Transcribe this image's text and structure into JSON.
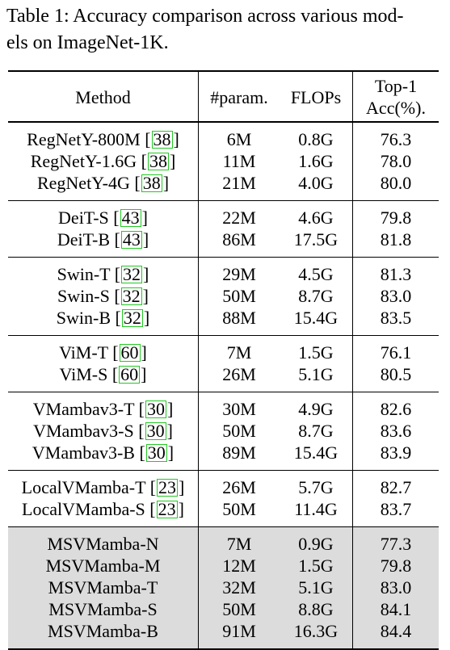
{
  "caption": {
    "line1": "Table 1: Accuracy comparison across various mod-",
    "line2": "els on ImageNet-1K."
  },
  "header": {
    "method": "Method",
    "params": "#param.",
    "flops": "FLOPs",
    "top1_line1": "Top-1",
    "top1_line2": "Acc(%)."
  },
  "groups": [
    {
      "rows": [
        {
          "method": "RegNetY-800M",
          "ref": "38",
          "params": "6M",
          "flops": "0.8G",
          "acc": "76.3"
        },
        {
          "method": "RegNetY-1.6G",
          "ref": "38",
          "params": "11M",
          "flops": "1.6G",
          "acc": "78.0"
        },
        {
          "method": "RegNetY-4G",
          "ref": "38",
          "params": "21M",
          "flops": "4.0G",
          "acc": "80.0"
        }
      ]
    },
    {
      "rows": [
        {
          "method": "DeiT-S",
          "ref": "43",
          "params": "22M",
          "flops": "4.6G",
          "acc": "79.8"
        },
        {
          "method": "DeiT-B",
          "ref": "43",
          "params": "86M",
          "flops": "17.5G",
          "acc": "81.8"
        }
      ]
    },
    {
      "rows": [
        {
          "method": "Swin-T",
          "ref": "32",
          "params": "29M",
          "flops": "4.5G",
          "acc": "81.3"
        },
        {
          "method": "Swin-S",
          "ref": "32",
          "params": "50M",
          "flops": "8.7G",
          "acc": "83.0"
        },
        {
          "method": "Swin-B",
          "ref": "32",
          "params": "88M",
          "flops": "15.4G",
          "acc": "83.5"
        }
      ]
    },
    {
      "rows": [
        {
          "method": "ViM-T",
          "ref": "60",
          "params": "7M",
          "flops": "1.5G",
          "acc": "76.1"
        },
        {
          "method": "ViM-S",
          "ref": "60",
          "params": "26M",
          "flops": "5.1G",
          "acc": "80.5"
        }
      ]
    },
    {
      "rows": [
        {
          "method": "VMambav3-T",
          "ref": "30",
          "params": "30M",
          "flops": "4.9G",
          "acc": "82.6"
        },
        {
          "method": "VMambav3-S",
          "ref": "30",
          "params": "50M",
          "flops": "8.7G",
          "acc": "83.6"
        },
        {
          "method": "VMambav3-B",
          "ref": "30",
          "params": "89M",
          "flops": "15.4G",
          "acc": "83.9"
        }
      ]
    },
    {
      "rows": [
        {
          "method": "LocalVMamba-T",
          "ref": "23",
          "params": "26M",
          "flops": "5.7G",
          "acc": "82.7"
        },
        {
          "method": "LocalVMamba-S",
          "ref": "23",
          "params": "50M",
          "flops": "11.4G",
          "acc": "83.7"
        }
      ]
    },
    {
      "shaded": true,
      "rows": [
        {
          "method": "MSVMamba-N",
          "ref": "",
          "params": "7M",
          "flops": "0.9G",
          "acc": "77.3"
        },
        {
          "method": "MSVMamba-M",
          "ref": "",
          "params": "12M",
          "flops": "1.5G",
          "acc": "79.8"
        },
        {
          "method": "MSVMamba-T",
          "ref": "",
          "params": "32M",
          "flops": "5.1G",
          "acc": "83.0"
        },
        {
          "method": "MSVMamba-S",
          "ref": "",
          "params": "50M",
          "flops": "8.8G",
          "acc": "84.1"
        },
        {
          "method": "MSVMamba-B",
          "ref": "",
          "params": "91M",
          "flops": "16.3G",
          "acc": "84.4"
        }
      ]
    }
  ],
  "colors": {
    "shade": "#dcdcdc",
    "ref_box": "#22c922"
  }
}
